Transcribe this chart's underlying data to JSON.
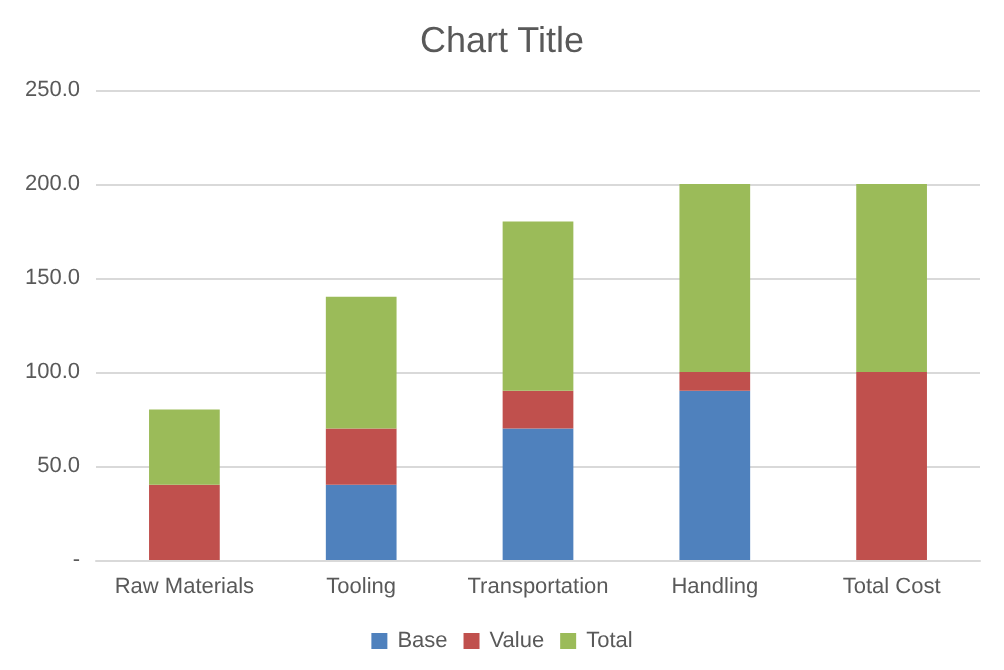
{
  "chart_data": {
    "type": "bar",
    "title": "Chart Title",
    "stacked": true,
    "categories": [
      "Raw Materials",
      "Tooling",
      "Transportation",
      "Handling",
      "Total Cost"
    ],
    "series": [
      {
        "name": "Base",
        "color": "#4f81bd",
        "values": [
          0,
          40,
          70,
          90,
          0
        ]
      },
      {
        "name": "Value",
        "color": "#c0504d",
        "values": [
          40,
          30,
          20,
          10,
          100
        ]
      },
      {
        "name": "Total",
        "color": "#9bbb59",
        "values": [
          40,
          70,
          90,
          100,
          100
        ]
      }
    ],
    "ylim": [
      0,
      250
    ],
    "yticks": [
      {
        "value": 0,
        "label": "-"
      },
      {
        "value": 50,
        "label": "50.0"
      },
      {
        "value": 100,
        "label": "100.0"
      },
      {
        "value": 150,
        "label": "150.0"
      },
      {
        "value": 200,
        "label": "200.0"
      },
      {
        "value": 250,
        "label": "250.0"
      }
    ],
    "grid": "y",
    "legend": "bottom"
  }
}
